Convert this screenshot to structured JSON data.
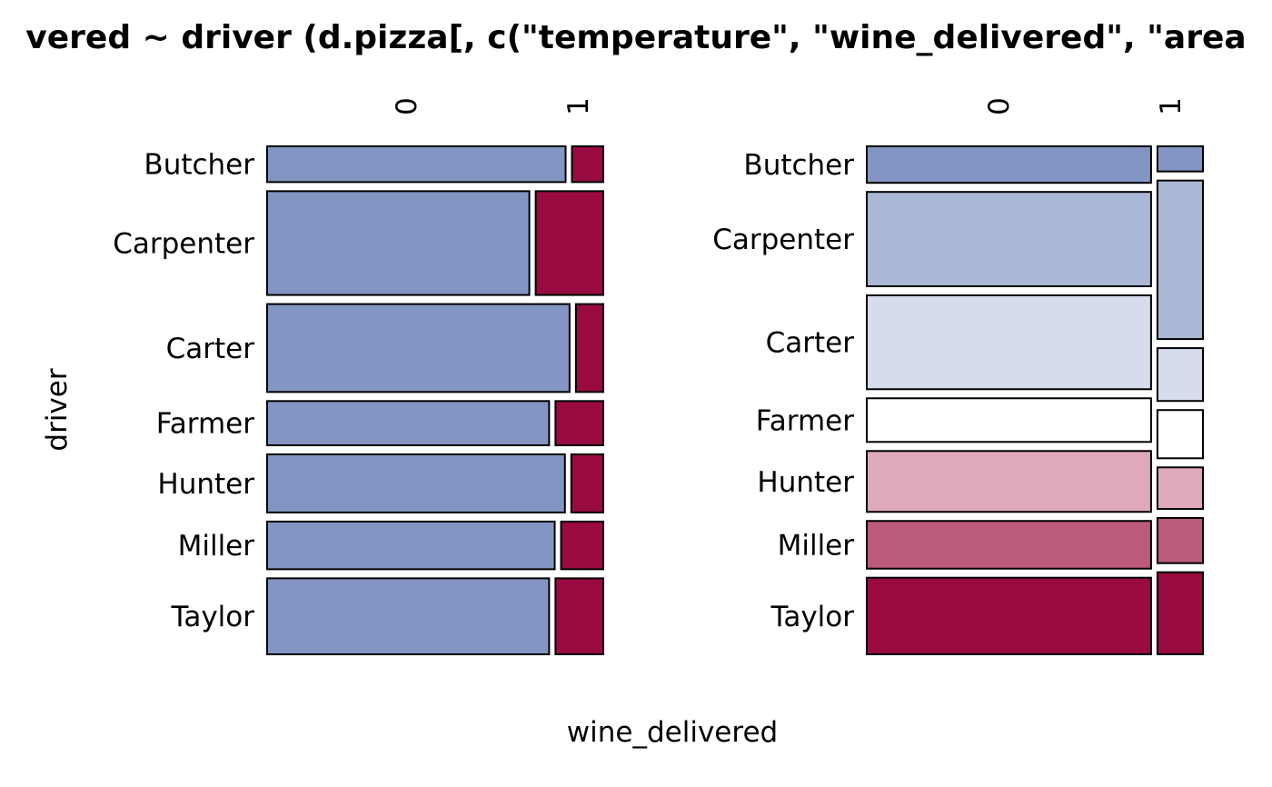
{
  "chart_data": {
    "type": "mosaic",
    "title": "vered ~ driver (d.pizza[, c(\"temperature\", \"wine_delivered\", \"area",
    "xlabel": "wine_delivered",
    "ylabel": "driver",
    "categories": [
      "Butcher",
      "Carpenter",
      "Carter",
      "Farmer",
      "Hunter",
      "Miller",
      "Taylor"
    ],
    "columns": [
      "0",
      "1"
    ],
    "panels": [
      {
        "row_shares": [
          0.072,
          0.209,
          0.177,
          0.089,
          0.117,
          0.096,
          0.153
        ],
        "col1_shares": [
          0.095,
          0.205,
          0.083,
          0.145,
          0.097,
          0.128,
          0.145
        ],
        "colors": [
          "#8395c2",
          "#990a40"
        ]
      },
      {
        "col_shares": [
          0.862,
          0.138
        ],
        "col0_row_shares": [
          0.072,
          0.186,
          0.185,
          0.086,
          0.12,
          0.094,
          0.151
        ],
        "col1_row_shares": [
          0.049,
          0.309,
          0.103,
          0.094,
          0.081,
          0.088,
          0.16
        ],
        "row_colors": [
          "#8395c2",
          "#aab7d5",
          "#d6dcec",
          "#ffffff",
          "#dfaabc",
          "#bb5a7c",
          "#990a40"
        ]
      }
    ]
  }
}
